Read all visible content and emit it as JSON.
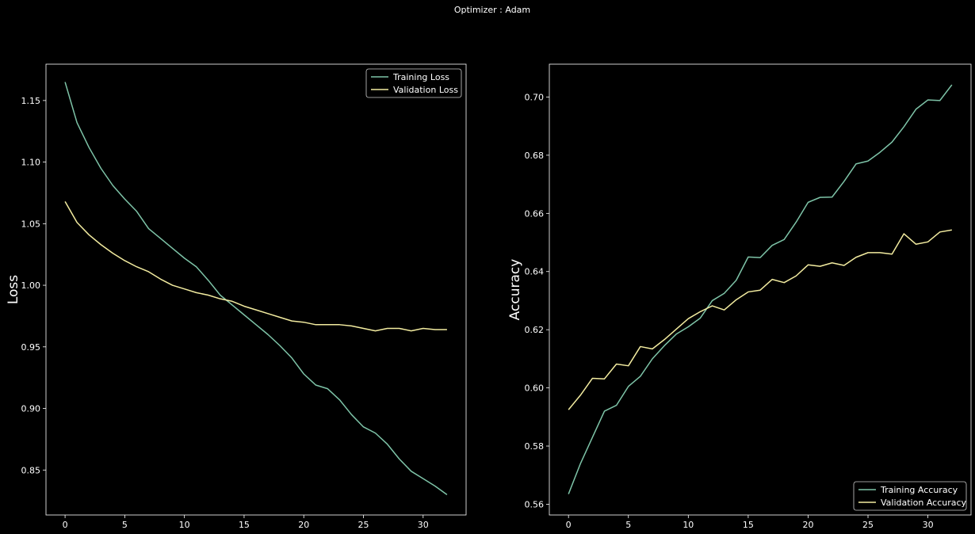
{
  "suptitle": "Optimizer : Adam",
  "colors": {
    "background": "#000000",
    "axes": "#ffffff",
    "training": "#7ec4a8",
    "validation": "#f3eca0",
    "legend_bg": "#000000",
    "legend_border": "#cccccc"
  },
  "chart_data": [
    {
      "type": "line",
      "title": "",
      "xlabel": "",
      "ylabel": "Loss",
      "xlim": [
        -1.6,
        33.6
      ],
      "ylim": [
        0.8135,
        1.1795
      ],
      "xticks": [
        0,
        5,
        10,
        15,
        20,
        25,
        30
      ],
      "yticks": [
        0.85,
        0.9,
        0.95,
        1.0,
        1.05,
        1.1,
        1.15
      ],
      "ytick_labels": [
        "0.85",
        "0.90",
        "0.95",
        "1.00",
        "1.05",
        "1.10",
        "1.15"
      ],
      "legend_position": "top-right",
      "x": [
        0,
        1,
        2,
        3,
        4,
        5,
        6,
        7,
        8,
        9,
        10,
        11,
        12,
        13,
        14,
        15,
        16,
        17,
        18,
        19,
        20,
        21,
        22,
        23,
        24,
        25,
        26,
        27,
        28,
        29,
        30,
        31,
        32
      ],
      "series": [
        {
          "name": "Training Loss",
          "color_key": "training",
          "values": [
            1.165,
            1.132,
            1.112,
            1.095,
            1.081,
            1.07,
            1.06,
            1.046,
            1.038,
            1.03,
            1.022,
            1.015,
            1.004,
            0.992,
            0.984,
            0.976,
            0.968,
            0.96,
            0.951,
            0.941,
            0.928,
            0.919,
            0.916,
            0.907,
            0.895,
            0.885,
            0.88,
            0.871,
            0.859,
            0.849,
            0.843,
            0.837,
            0.83
          ]
        },
        {
          "name": "Validation Loss",
          "color_key": "validation",
          "values": [
            1.068,
            1.051,
            1.041,
            1.033,
            1.026,
            1.02,
            1.015,
            1.011,
            1.005,
            1.0,
            0.997,
            0.994,
            0.992,
            0.989,
            0.987,
            0.983,
            0.98,
            0.977,
            0.974,
            0.971,
            0.97,
            0.968,
            0.968,
            0.968,
            0.967,
            0.965,
            0.963,
            0.965,
            0.965,
            0.963,
            0.965,
            0.964,
            0.964
          ]
        }
      ]
    },
    {
      "type": "line",
      "title": "",
      "xlabel": "",
      "ylabel": "Accuracy",
      "xlim": [
        -1.6,
        33.6
      ],
      "ylim": [
        0.5563,
        0.7113
      ],
      "xticks": [
        0,
        5,
        10,
        15,
        20,
        25,
        30
      ],
      "yticks": [
        0.56,
        0.58,
        0.6,
        0.62,
        0.64,
        0.66,
        0.68,
        0.7
      ],
      "ytick_labels": [
        "0.56",
        "0.58",
        "0.60",
        "0.62",
        "0.64",
        "0.66",
        "0.68",
        "0.70"
      ],
      "legend_position": "bottom-right",
      "x": [
        0,
        1,
        2,
        3,
        4,
        5,
        6,
        7,
        8,
        9,
        10,
        11,
        12,
        13,
        14,
        15,
        16,
        17,
        18,
        19,
        20,
        21,
        22,
        23,
        24,
        25,
        26,
        27,
        28,
        29,
        30,
        31,
        32
      ],
      "series": [
        {
          "name": "Training Accuracy",
          "color_key": "training",
          "values": [
            0.5635,
            0.574,
            0.583,
            0.592,
            0.594,
            0.6005,
            0.604,
            0.61,
            0.6145,
            0.6185,
            0.621,
            0.624,
            0.63,
            0.6325,
            0.637,
            0.645,
            0.6448,
            0.649,
            0.651,
            0.657,
            0.6638,
            0.6655,
            0.6656,
            0.671,
            0.677,
            0.678,
            0.681,
            0.6845,
            0.6898,
            0.6958,
            0.699,
            0.6988,
            0.7042
          ]
        },
        {
          "name": "Validation Accuracy",
          "color_key": "validation",
          "values": [
            0.5925,
            0.5975,
            0.6033,
            0.6031,
            0.6082,
            0.6076,
            0.6142,
            0.6134,
            0.6166,
            0.6202,
            0.6238,
            0.6262,
            0.6282,
            0.6268,
            0.6303,
            0.633,
            0.6336,
            0.6373,
            0.6362,
            0.6385,
            0.6423,
            0.6418,
            0.643,
            0.6421,
            0.6449,
            0.6465,
            0.6465,
            0.646,
            0.653,
            0.6494,
            0.6502,
            0.6536,
            0.6543
          ]
        }
      ]
    }
  ]
}
